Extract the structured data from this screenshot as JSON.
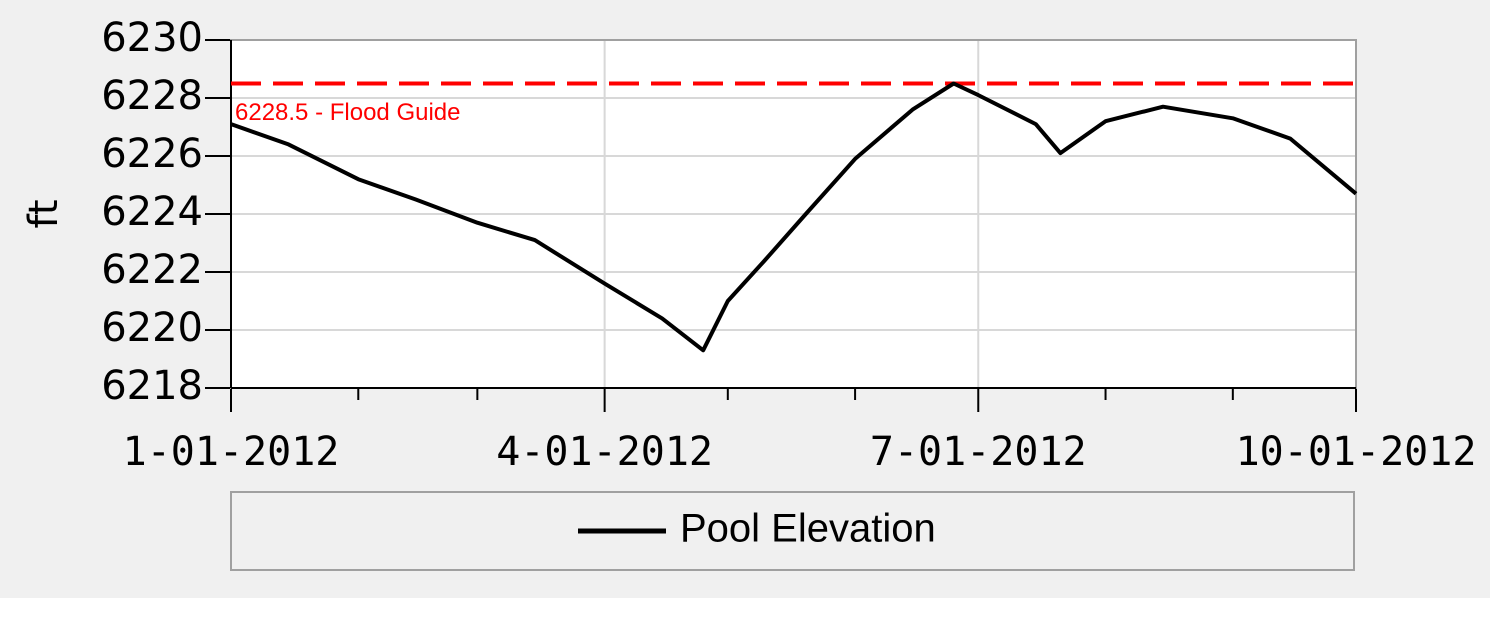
{
  "chart_data": {
    "type": "line",
    "y_label": "ft",
    "x": [
      "2012-01-01",
      "2012-01-15",
      "2012-02-01",
      "2012-02-15",
      "2012-03-01",
      "2012-03-15",
      "2012-04-01",
      "2012-04-15",
      "2012-04-25",
      "2012-05-01",
      "2012-05-10",
      "2012-05-20",
      "2012-06-01",
      "2012-06-15",
      "2012-06-25",
      "2012-07-01",
      "2012-07-15",
      "2012-07-21",
      "2012-08-01",
      "2012-08-15",
      "2012-09-01",
      "2012-09-15",
      "2012-10-01"
    ],
    "series": [
      {
        "name": "Pool Elevation",
        "color": "#000000",
        "values": [
          6227.1,
          6226.4,
          6225.2,
          6224.5,
          6223.7,
          6223.1,
          6221.6,
          6220.4,
          6219.3,
          6221.0,
          6222.4,
          6224.0,
          6225.9,
          6227.6,
          6228.5,
          6228.1,
          6227.1,
          6226.1,
          6227.2,
          6227.7,
          6227.3,
          6226.6,
          6224.7
        ]
      }
    ],
    "reference_line": {
      "value": 6228.5,
      "label": "6228.5 - Flood Guide",
      "color": "#ff0000"
    },
    "xlim": [
      "2012-01-01",
      "2012-10-01"
    ],
    "xticks": [
      {
        "value": "2012-01-01",
        "label": "1-01-2012"
      },
      {
        "value": "2012-04-01",
        "label": "4-01-2012"
      },
      {
        "value": "2012-07-01",
        "label": "7-01-2012"
      },
      {
        "value": "2012-10-01",
        "label": "10-01-2012"
      }
    ],
    "xminorticks": [
      "2012-02-01",
      "2012-03-01",
      "2012-05-01",
      "2012-06-01",
      "2012-08-01",
      "2012-09-01"
    ],
    "ylim": [
      6218,
      6230
    ],
    "yticks": [
      6218,
      6220,
      6222,
      6224,
      6226,
      6228,
      6230
    ],
    "grid": true
  }
}
